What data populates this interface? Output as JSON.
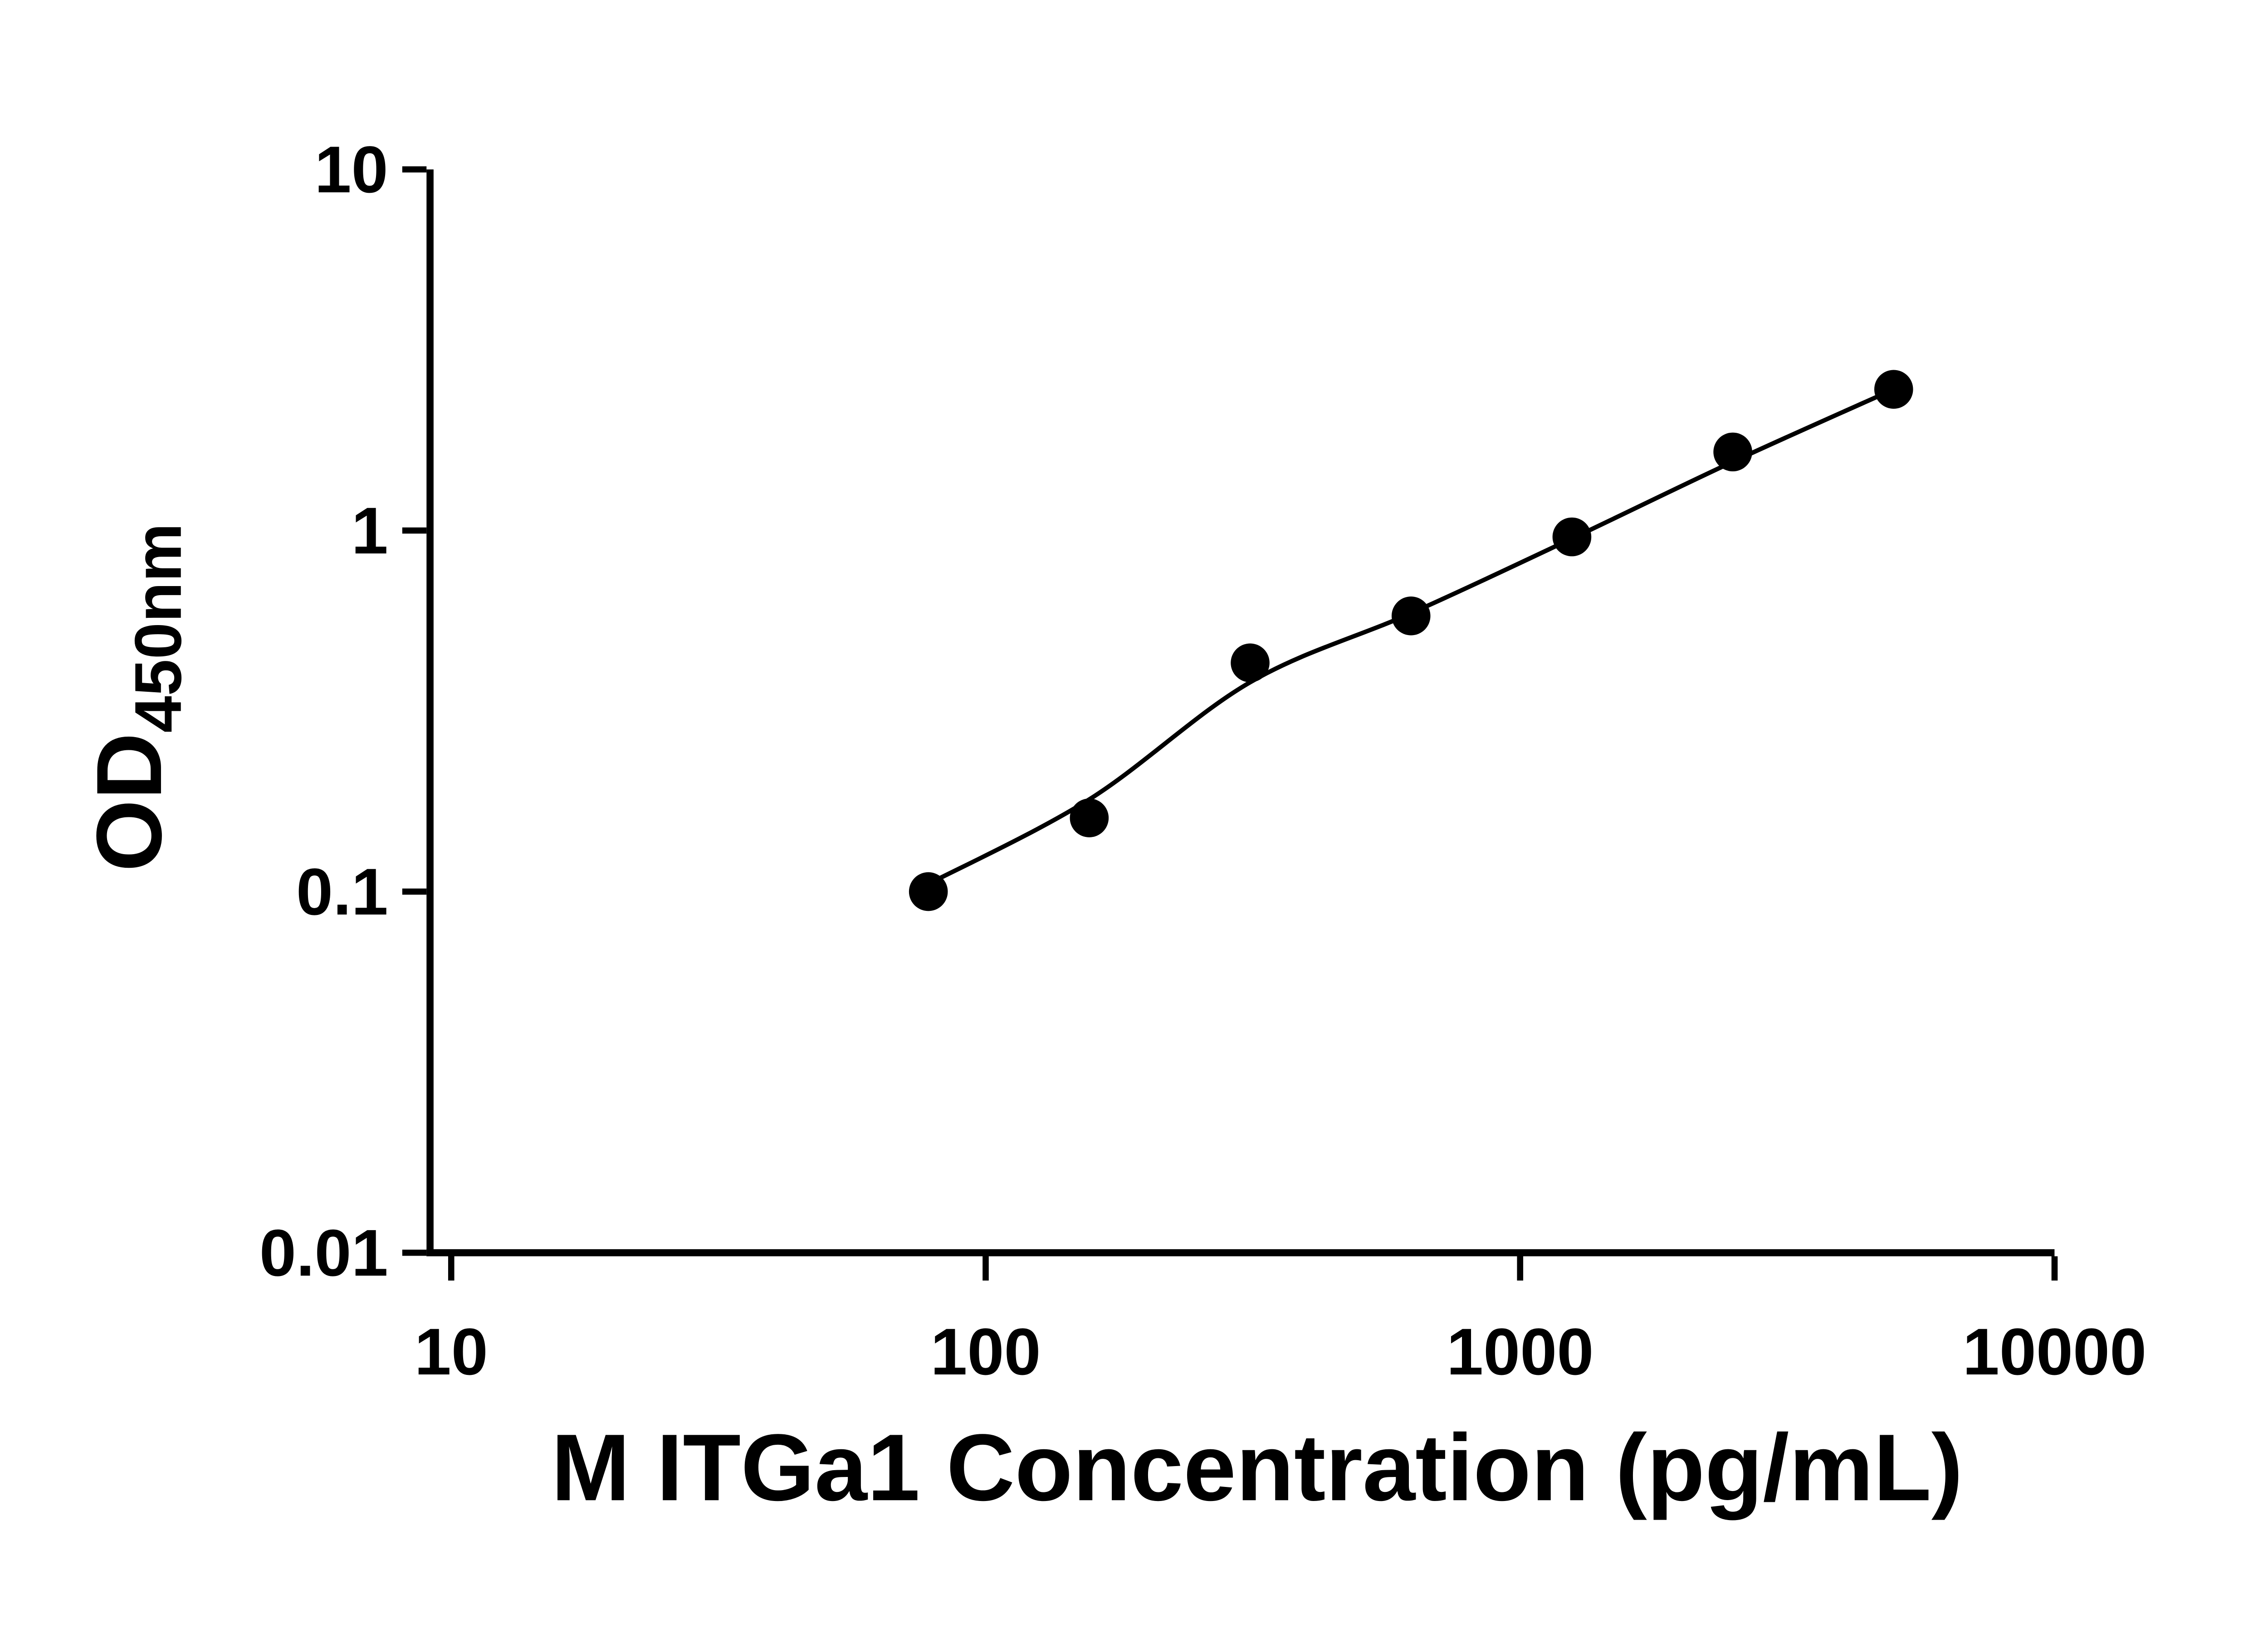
{
  "chart_data": {
    "type": "scatter",
    "title": "",
    "xlabel": "M ITGa1 Concentration (pg/mL)",
    "ylabel": "OD",
    "ylabel_subscript": "450nm",
    "x_scale": "log10",
    "y_scale": "log10",
    "xlim": [
      10,
      10000
    ],
    "ylim": [
      0.01,
      10
    ],
    "grid": false,
    "legend": false,
    "x_ticks": [
      {
        "value": 10,
        "label": "10"
      },
      {
        "value": 100,
        "label": "100"
      },
      {
        "value": 1000,
        "label": "1000"
      },
      {
        "value": 10000,
        "label": "10000"
      }
    ],
    "y_ticks": [
      {
        "value": 0.01,
        "label": "0.01"
      },
      {
        "value": 0.1,
        "label": "0.1"
      },
      {
        "value": 1,
        "label": "1"
      },
      {
        "value": 10,
        "label": "10"
      }
    ],
    "series": [
      {
        "name": "standards",
        "type": "scatter",
        "marker": "filled-circle",
        "x": [
          78.125,
          156.25,
          312.5,
          625,
          1250,
          2500,
          5000
        ],
        "y": [
          0.1,
          0.16,
          0.43,
          0.58,
          0.96,
          1.65,
          2.46
        ]
      },
      {
        "name": "fit-curve",
        "type": "line",
        "x": [
          78.125,
          156.25,
          312.5,
          625,
          1250,
          2500,
          5000
        ],
        "y": [
          0.105,
          0.18,
          0.38,
          0.59,
          0.95,
          1.55,
          2.46
        ]
      }
    ],
    "colors": {
      "axis": "#000000",
      "points": "#000000",
      "curve": "#000000",
      "background": "#ffffff"
    }
  }
}
